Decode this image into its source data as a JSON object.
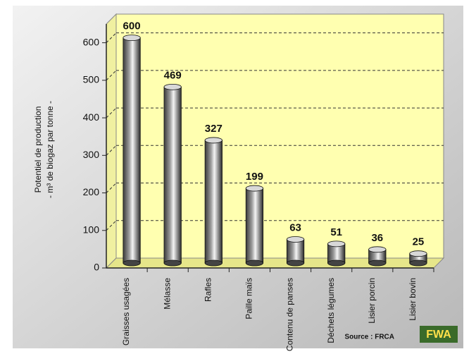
{
  "chart_data": {
    "type": "bar",
    "y_label": [
      "Potentiel de production",
      "- m³ de biogaz par tonne -"
    ],
    "categories": [
      "Graisses usagées",
      "Mélasse",
      "Rafles",
      "Paille maïs",
      "Contenu de panses",
      "Déchets légumes",
      "Lisier porcin",
      "Lisier bovin"
    ],
    "values": [
      600,
      469,
      327,
      199,
      63,
      51,
      36,
      25
    ],
    "color": "#9c9c9c",
    "ylim": [
      0,
      650
    ],
    "yticks": [
      0,
      100,
      200,
      300,
      400,
      500,
      600
    ],
    "grid": true,
    "source": "Source : FRCA",
    "logo": "FWA"
  }
}
